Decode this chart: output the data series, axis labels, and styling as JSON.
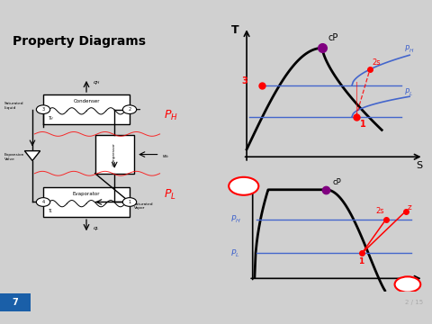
{
  "title": "Property Diagrams",
  "bg_color": "#d0d0d0",
  "slide_bg": "#ffffff",
  "page_num": "7",
  "slide_num": "2 / 15",
  "bottom_bar_blue": "#5aafea",
  "bottom_bar_dark": "#1a5fa8"
}
